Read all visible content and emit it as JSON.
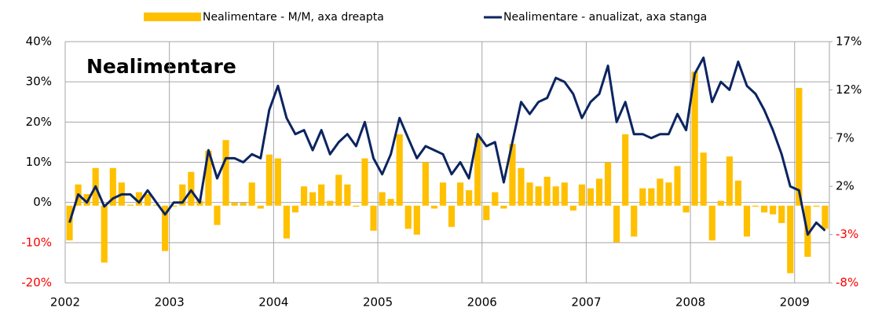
{
  "chart_data": {
    "type": "bar_line",
    "title": "Nealimentare",
    "categories": [
      "2002",
      null,
      null,
      null,
      null,
      null,
      null,
      null,
      null,
      null,
      null,
      null,
      "2003",
      null,
      null,
      null,
      null,
      null,
      null,
      null,
      null,
      null,
      null,
      null,
      "2004",
      null,
      null,
      null,
      null,
      null,
      null,
      null,
      null,
      null,
      null,
      null,
      "2005",
      null,
      null,
      null,
      null,
      null,
      null,
      null,
      null,
      null,
      null,
      null,
      "2006",
      null,
      null,
      null,
      null,
      null,
      null,
      null,
      null,
      null,
      null,
      null,
      "2007",
      null,
      null,
      null,
      null,
      null,
      null,
      null,
      null,
      null,
      null,
      null,
      "2008",
      null,
      null,
      null,
      null,
      null,
      null,
      null,
      null,
      null,
      null,
      null,
      "2009",
      null,
      null,
      null
    ],
    "series": [
      {
        "name": "Nealimentare - M/M, axa dreapta",
        "kind": "bar",
        "axis": "y2",
        "color": "#ffc000",
        "values": [
          -3.6,
          2.2,
          1.2,
          3.9,
          -5.9,
          3.9,
          2.4,
          0.1,
          1.4,
          1.2,
          0.1,
          -4.7,
          -0.1,
          2.2,
          3.5,
          0.5,
          5.7,
          -2.0,
          6.8,
          0.3,
          0.3,
          2.4,
          -0.3,
          5.3,
          4.9,
          -3.4,
          -0.7,
          2.0,
          1.4,
          2.2,
          0.5,
          3.2,
          2.2,
          -0.1,
          4.9,
          -2.6,
          1.4,
          0.7,
          7.4,
          -2.4,
          -3.0,
          4.5,
          -0.3,
          2.4,
          -2.2,
          2.4,
          1.6,
          7.0,
          -1.5,
          1.4,
          -0.3,
          6.4,
          3.9,
          2.4,
          2.0,
          3.0,
          2.0,
          2.4,
          -0.5,
          2.2,
          1.8,
          2.8,
          4.5,
          -3.8,
          7.4,
          -3.2,
          1.8,
          1.8,
          2.8,
          2.4,
          4.1,
          -0.7,
          13.9,
          5.5,
          -3.6,
          0.5,
          5.1,
          2.6,
          -3.2,
          -0.1,
          -0.7,
          -0.9,
          -1.8,
          -7.0,
          12.2,
          -5.3,
          -0.1,
          -2.4
        ]
      },
      {
        "name": "Nealimentare - anualizat, axa stanga",
        "kind": "line",
        "axis": "y",
        "color": "#0c2461",
        "values": [
          -5,
          2,
          0,
          4,
          -1,
          1,
          2,
          2,
          0,
          3,
          0,
          -3,
          0,
          0,
          3,
          0,
          13,
          6,
          11,
          11,
          10,
          12,
          11,
          23,
          29,
          21,
          17,
          18,
          13,
          18,
          12,
          15,
          17,
          14,
          20,
          11,
          7,
          12,
          21,
          16,
          11,
          14,
          13,
          12,
          7,
          10,
          6,
          17,
          14,
          15,
          5,
          15,
          25,
          22,
          25,
          26,
          31,
          30,
          27,
          21,
          25,
          27,
          34,
          20,
          25,
          17,
          17,
          16,
          17,
          17,
          22,
          18,
          32,
          36,
          25,
          30,
          28,
          35,
          29,
          27,
          23,
          18,
          12,
          4,
          3,
          -8,
          -5,
          -7
        ]
      }
    ],
    "ylim": [
      -20,
      40
    ],
    "yticks": [
      {
        "value": -20,
        "label": "-20%"
      },
      {
        "value": -10,
        "label": "-10%"
      },
      {
        "value": 0,
        "label": "0%"
      },
      {
        "value": 10,
        "label": "10%"
      },
      {
        "value": 20,
        "label": "20%"
      },
      {
        "value": 30,
        "label": "30%"
      },
      {
        "value": 40,
        "label": "40%"
      }
    ],
    "y2lim": [
      -8,
      17
    ],
    "y2ticks": [
      {
        "value": -8,
        "label": "-8%"
      },
      {
        "value": -3,
        "label": "-3%"
      },
      {
        "value": 2,
        "label": "2%"
      },
      {
        "value": 7,
        "label": "7%"
      },
      {
        "value": 12,
        "label": "12%"
      },
      {
        "value": 17,
        "label": "17%"
      }
    ],
    "negative_tick_color": "#ff0000",
    "grid": true,
    "legend": "top"
  }
}
